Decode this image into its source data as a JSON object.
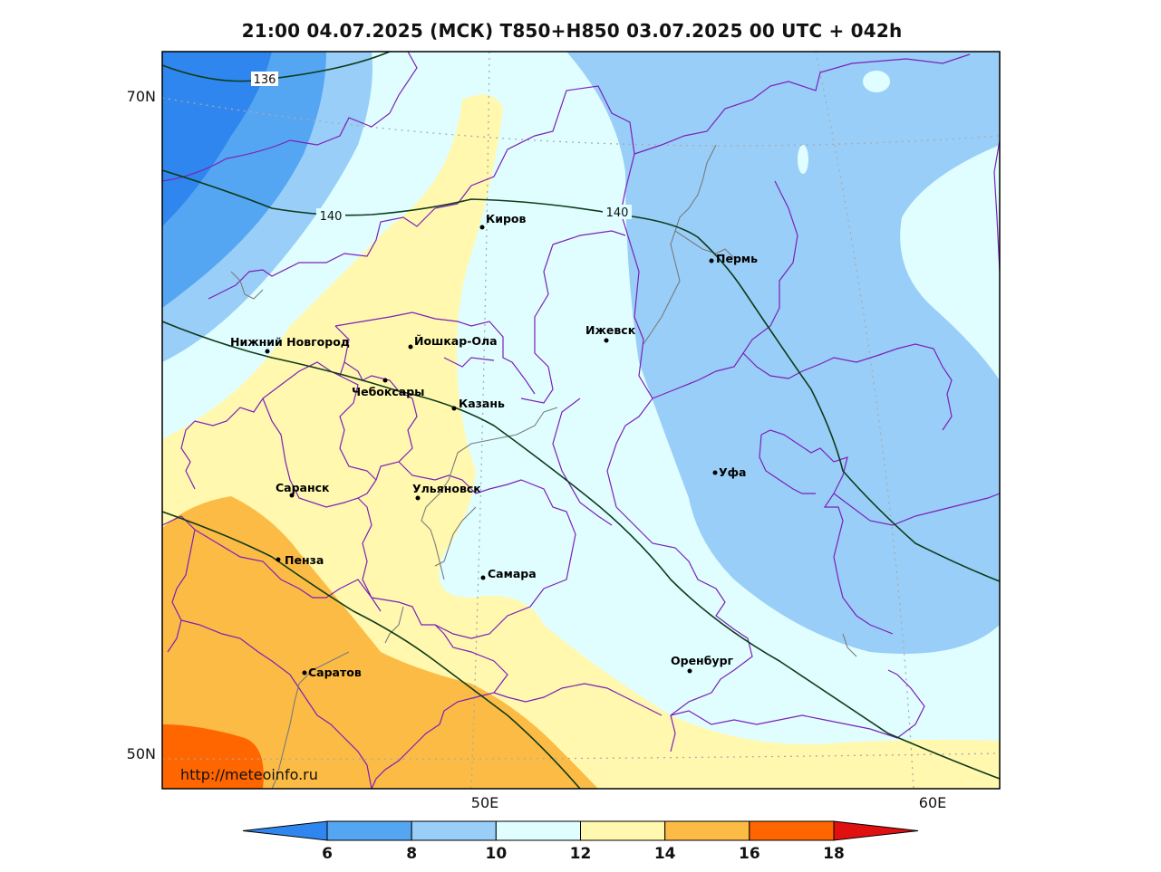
{
  "title": "21:00 04.07.2025 (МСК) T850+H850 03.07.2025 00 UTC + 042h",
  "axes": {
    "lat_labels": [
      "70N",
      "50N"
    ],
    "lon_labels": [
      "50E",
      "60E"
    ]
  },
  "contours": {
    "h850_labels": [
      "136",
      "140",
      "140"
    ]
  },
  "cities": [
    {
      "name": "Киров"
    },
    {
      "name": "Пермь"
    },
    {
      "name": "Нижний Новгород"
    },
    {
      "name": "Йошкар-Ола"
    },
    {
      "name": "Ижевск"
    },
    {
      "name": "Чебоксары"
    },
    {
      "name": "Казань"
    },
    {
      "name": "Уфа"
    },
    {
      "name": "Саранск"
    },
    {
      "name": "Ульяновск"
    },
    {
      "name": "Пенза"
    },
    {
      "name": "Самара"
    },
    {
      "name": "Оренбург"
    },
    {
      "name": "Саратов"
    }
  ],
  "watermark": "http://meteoinfo.ru",
  "legend": {
    "ticks": [
      "6",
      "8",
      "10",
      "12",
      "14",
      "16",
      "18"
    ],
    "colors": [
      "#2f86ee",
      "#55a6f2",
      "#99cef8",
      "#e0feff",
      "#fff8ae",
      "#fcbb44",
      "#ff6600",
      "#e01010"
    ]
  }
}
